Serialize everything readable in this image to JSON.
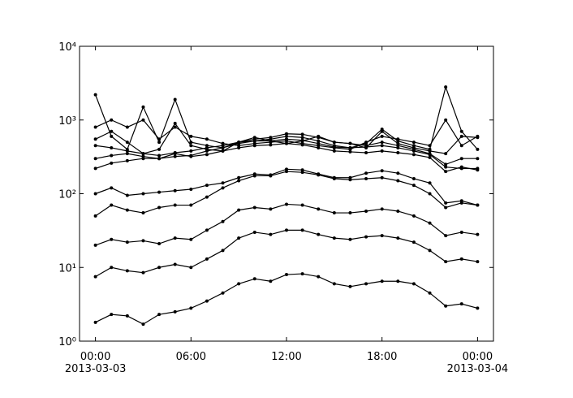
{
  "chart_data": {
    "type": "line",
    "log_y": true,
    "xlim": [
      "2013-03-02 23:00",
      "2013-03-04 01:00"
    ],
    "xticks": [
      {
        "value": "2013-03-03 00:00",
        "label": "00:00\n2013-03-03"
      },
      {
        "value": "2013-03-03 06:00",
        "label": "06:00"
      },
      {
        "value": "2013-03-03 12:00",
        "label": "12:00"
      },
      {
        "value": "2013-03-03 18:00",
        "label": "18:00"
      },
      {
        "value": "2013-03-04 00:00",
        "label": "00:00\n2013-03-04"
      }
    ],
    "ylim": [
      1,
      10000
    ],
    "yticks": [
      {
        "value": 1,
        "label": "10⁰"
      },
      {
        "value": 10,
        "label": "10¹"
      },
      {
        "value": 100,
        "label": "10²"
      },
      {
        "value": 1000,
        "label": "10³"
      },
      {
        "value": 10000,
        "label": "10⁴"
      }
    ],
    "x": [
      "2013-03-03 00:00",
      "2013-03-03 01:00",
      "2013-03-03 02:00",
      "2013-03-03 03:00",
      "2013-03-03 04:00",
      "2013-03-03 05:00",
      "2013-03-03 06:00",
      "2013-03-03 07:00",
      "2013-03-03 08:00",
      "2013-03-03 09:00",
      "2013-03-03 10:00",
      "2013-03-03 11:00",
      "2013-03-03 12:00",
      "2013-03-03 13:00",
      "2013-03-03 14:00",
      "2013-03-03 15:00",
      "2013-03-03 16:00",
      "2013-03-03 17:00",
      "2013-03-03 18:00",
      "2013-03-03 19:00",
      "2013-03-03 20:00",
      "2013-03-03 21:00",
      "2013-03-03 22:00",
      "2013-03-03 23:00",
      "2013-03-04 00:00"
    ],
    "series": [
      {
        "color": "#000000",
        "values": [
          1.8,
          2.3,
          2.2,
          1.7,
          2.3,
          2.5,
          2.8,
          3.5,
          4.5,
          6,
          7,
          6.5,
          8,
          8.2,
          7.5,
          6,
          5.5,
          6,
          6.5,
          6.5,
          6,
          4.5,
          3,
          3.2,
          2.8
        ]
      },
      {
        "color": "#000000",
        "values": [
          7.5,
          10,
          9,
          8.5,
          10,
          11,
          10,
          13,
          17,
          25,
          30,
          28,
          32,
          32,
          28,
          25,
          24,
          26,
          27,
          25,
          22,
          17,
          12,
          13,
          12
        ]
      },
      {
        "color": "#000000",
        "values": [
          20,
          24,
          22,
          23,
          21,
          25,
          24,
          32,
          42,
          60,
          65,
          62,
          72,
          70,
          62,
          55,
          55,
          58,
          62,
          58,
          50,
          40,
          27,
          30,
          28
        ]
      },
      {
        "color": "#000000",
        "values": [
          50,
          70,
          60,
          55,
          65,
          70,
          70,
          90,
          120,
          150,
          175,
          175,
          200,
          195,
          180,
          160,
          155,
          160,
          165,
          150,
          130,
          100,
          65,
          75,
          70
        ]
      },
      {
        "color": "#000000",
        "values": [
          100,
          120,
          95,
          100,
          105,
          110,
          115,
          130,
          140,
          165,
          185,
          180,
          215,
          210,
          185,
          165,
          165,
          190,
          205,
          190,
          160,
          140,
          75,
          80,
          70
        ]
      },
      {
        "color": "#000000",
        "values": [
          220,
          260,
          280,
          300,
          300,
          320,
          330,
          380,
          420,
          480,
          520,
          520,
          550,
          530,
          480,
          430,
          420,
          430,
          450,
          420,
          380,
          340,
          230,
          220,
          220
        ]
      },
      {
        "color": "#000000",
        "values": [
          450,
          420,
          380,
          350,
          330,
          360,
          380,
          420,
          450,
          500,
          550,
          580,
          650,
          640,
          580,
          500,
          480,
          450,
          500,
          450,
          400,
          350,
          250,
          300,
          300
        ]
      },
      {
        "color": "#000000",
        "values": [
          2200,
          600,
          400,
          1500,
          500,
          1900,
          500,
          450,
          420,
          500,
          520,
          550,
          600,
          580,
          520,
          450,
          420,
          480,
          750,
          520,
          450,
          400,
          2800,
          700,
          400
        ]
      },
      {
        "color": "#000000",
        "values": [
          800,
          1000,
          800,
          1000,
          550,
          800,
          600,
          550,
          480,
          450,
          480,
          500,
          520,
          480,
          450,
          420,
          400,
          500,
          600,
          550,
          500,
          450,
          1000,
          450,
          600
        ]
      },
      {
        "color": "#000000",
        "values": [
          550,
          700,
          500,
          350,
          400,
          900,
          450,
          400,
          380,
          500,
          580,
          520,
          480,
          520,
          600,
          500,
          480,
          420,
          700,
          480,
          420,
          380,
          350,
          600,
          580
        ]
      },
      {
        "color": "#000000",
        "values": [
          300,
          330,
          350,
          320,
          300,
          350,
          320,
          340,
          380,
          420,
          450,
          460,
          480,
          460,
          420,
          380,
          370,
          360,
          380,
          360,
          340,
          310,
          200,
          230,
          210
        ]
      }
    ]
  }
}
